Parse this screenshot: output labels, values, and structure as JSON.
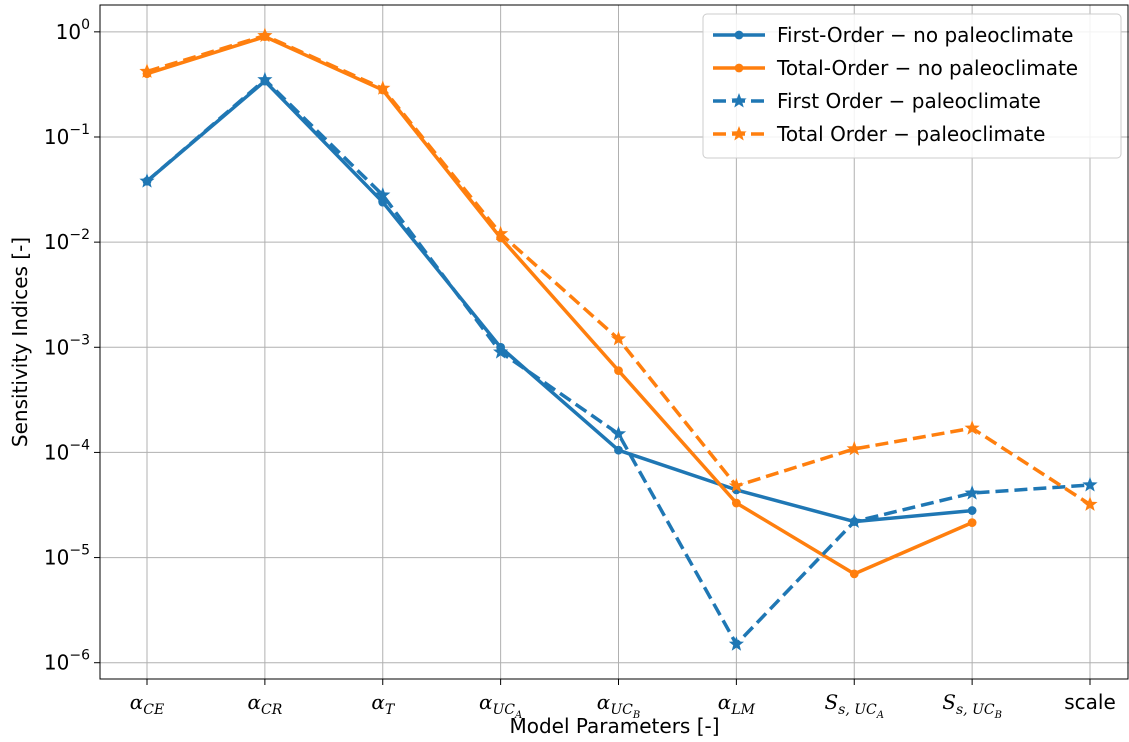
{
  "chart_data": {
    "type": "line",
    "categories": [
      "α_CE",
      "α_CR",
      "α_T",
      "α_UC_A",
      "α_UC_B",
      "α_LM",
      "S_s,UC_A",
      "S_s,UC_B",
      "scale"
    ],
    "category_labels": [
      {
        "base": "α",
        "sub": "CE"
      },
      {
        "base": "α",
        "sub": "CR"
      },
      {
        "base": "α",
        "sub": "T"
      },
      {
        "base": "α",
        "sub": "UC",
        "subsub": "A"
      },
      {
        "base": "α",
        "sub": "UC",
        "subsub": "B"
      },
      {
        "base": "α",
        "sub": "LM"
      },
      {
        "base": "S",
        "sub": "s, UC",
        "subsub": "A"
      },
      {
        "base": "S",
        "sub": "s, UC",
        "subsub": "B"
      },
      {
        "base": "scale",
        "plain": true
      }
    ],
    "xlabel": "Model Parameters [-]",
    "ylabel": "Sensitivity Indices [-]",
    "yscale": "log",
    "ylim": [
      7e-07,
      1.8
    ],
    "yticks": [
      {
        "value": 1,
        "mantissa": "10",
        "exp": "0"
      },
      {
        "value": 0.1,
        "mantissa": "10",
        "exp": "−1"
      },
      {
        "value": 0.01,
        "mantissa": "10",
        "exp": "−2"
      },
      {
        "value": 0.001,
        "mantissa": "10",
        "exp": "−3"
      },
      {
        "value": 0.0001,
        "mantissa": "10",
        "exp": "−4"
      },
      {
        "value": 1e-05,
        "mantissa": "10",
        "exp": "−5"
      },
      {
        "value": 1e-06,
        "mantissa": "10",
        "exp": "−6"
      }
    ],
    "grid": true,
    "legend_position": "top-right",
    "series": [
      {
        "name": "First-Order − no paleoclimate",
        "color": "#1f77b4",
        "linestyle": "solid",
        "marker": "circle",
        "values": [
          0.038,
          0.34,
          0.024,
          0.001,
          0.000105,
          4.4e-05,
          2.2e-05,
          2.8e-05,
          null
        ]
      },
      {
        "name": "Total-Order − no paleoclimate",
        "color": "#ff7f0e",
        "linestyle": "solid",
        "marker": "circle",
        "values": [
          0.4,
          0.9,
          0.28,
          0.011,
          0.0006,
          3.3e-05,
          7e-06,
          2.15e-05,
          null
        ]
      },
      {
        "name": "First Order − paleoclimate",
        "color": "#1f77b4",
        "linestyle": "dashed",
        "marker": "star",
        "values": [
          0.038,
          0.35,
          0.028,
          0.0009,
          0.00015,
          1.5e-06,
          2.2e-05,
          4.1e-05,
          4.9e-05
        ]
      },
      {
        "name": "Total Order − paleoclimate",
        "color": "#ff7f0e",
        "linestyle": "dashed",
        "marker": "star",
        "values": [
          0.42,
          0.92,
          0.29,
          0.012,
          0.0012,
          4.8e-05,
          0.000108,
          0.00017,
          3.2e-05
        ]
      }
    ]
  }
}
